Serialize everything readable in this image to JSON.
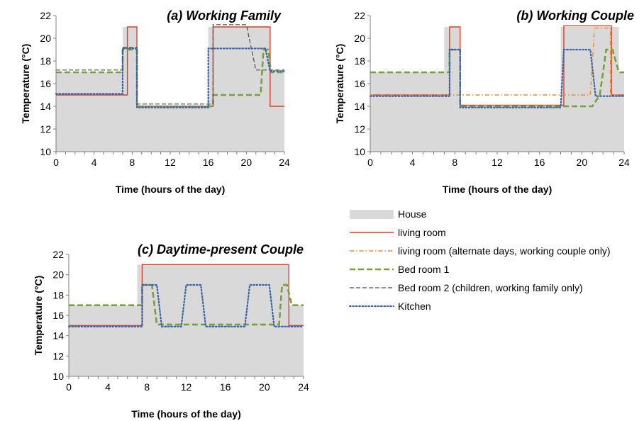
{
  "colors": {
    "house": "#d9d9d9",
    "living_room": "#d9402b",
    "living_room_alt": "#f08c2c",
    "bed_room_1": "#76a03a",
    "bed_room_2": "#4d4d4d",
    "kitchen": "#3a60a8"
  },
  "legend": [
    {
      "key": "house",
      "label": "House",
      "style": "area"
    },
    {
      "key": "living_room",
      "label": "living room",
      "style": "solid"
    },
    {
      "key": "living_room_alt",
      "label": "living room (alternate days, working couple only)",
      "style": "dashdot"
    },
    {
      "key": "bed_room_1",
      "label": "Bed room 1",
      "style": "dashed-thick"
    },
    {
      "key": "bed_room_2",
      "label": "Bed room 2 (children, working family only)",
      "style": "dashed-thin"
    },
    {
      "key": "kitchen",
      "label": "Kitchen",
      "style": "dotted"
    }
  ],
  "chart_data": [
    {
      "type": "line",
      "title": "(a) Working Family",
      "xlabel": "Time (hours of the day)",
      "ylabel": "Temperature (°C)",
      "xlim": [
        0,
        24
      ],
      "ylim": [
        10,
        22
      ],
      "xticks": [
        0,
        4,
        8,
        12,
        16,
        20,
        24
      ],
      "yticks": [
        10,
        12,
        14,
        16,
        18,
        20,
        22
      ],
      "series": [
        {
          "key": "house",
          "name": "House",
          "x": [
            0,
            7,
            7,
            8.5,
            8.5,
            16,
            16,
            22.5,
            22.5,
            24
          ],
          "y": [
            17,
            17,
            21,
            21,
            14,
            14,
            21,
            21,
            17,
            17
          ]
        },
        {
          "key": "living_room",
          "name": "living room",
          "x": [
            0,
            7.5,
            7.5,
            8.5,
            8.5,
            16.5,
            16.5,
            22.5,
            22.5,
            24
          ],
          "y": [
            15,
            15,
            21,
            21,
            14,
            14,
            21,
            21,
            14,
            14
          ]
        },
        {
          "key": "bed_room_1",
          "name": "Bed room 1",
          "x": [
            0,
            7,
            7,
            8.5,
            8.5,
            16.5,
            16.5,
            21.5,
            21.8,
            22.3,
            22.6,
            24
          ],
          "y": [
            17,
            17,
            19,
            19,
            14,
            14,
            15,
            15,
            19,
            19,
            17,
            17
          ]
        },
        {
          "key": "bed_room_2",
          "name": "Bed room 2 (children, working family only)",
          "x": [
            0,
            7,
            7,
            8.5,
            8.5,
            16.5,
            16.5,
            20,
            21,
            24
          ],
          "y": [
            17.2,
            17.2,
            19.2,
            19.2,
            14.2,
            14.2,
            21.2,
            21.2,
            17.2,
            17.2
          ]
        },
        {
          "key": "kitchen",
          "name": "Kitchen",
          "x": [
            0,
            7,
            7,
            8.5,
            8.5,
            16,
            16,
            22,
            22.5,
            24
          ],
          "y": [
            15.1,
            15.1,
            19.1,
            19.1,
            13.9,
            13.9,
            19.1,
            19.1,
            17.1,
            17.1
          ]
        }
      ]
    },
    {
      "type": "line",
      "title": "(b) Working Couple",
      "xlabel": "Time (hours of the day)",
      "ylabel": "Temperature (°C)",
      "xlim": [
        0,
        24
      ],
      "ylim": [
        10,
        22
      ],
      "xticks": [
        0,
        4,
        8,
        12,
        16,
        20,
        24
      ],
      "yticks": [
        10,
        12,
        14,
        16,
        18,
        20,
        22
      ],
      "series": [
        {
          "key": "house",
          "name": "House",
          "x": [
            0,
            7,
            7,
            8.5,
            8.5,
            18,
            18,
            23.5,
            23.5,
            24
          ],
          "y": [
            17,
            17,
            21,
            21,
            14,
            14,
            21,
            21,
            17,
            17
          ]
        },
        {
          "key": "living_room",
          "name": "living room",
          "x": [
            0,
            7.5,
            7.5,
            8.5,
            8.5,
            18.3,
            18.3,
            22.8,
            22.8,
            24
          ],
          "y": [
            15,
            15,
            21,
            21,
            14.1,
            14.1,
            21.1,
            21.1,
            15,
            15
          ]
        },
        {
          "key": "living_room_alt",
          "name": "living room (alternate days, working couple only)",
          "x": [
            0,
            20.8,
            21.2,
            22.7,
            22.7,
            24
          ],
          "y": [
            15,
            15,
            20.9,
            20.9,
            15,
            15
          ]
        },
        {
          "key": "bed_room_1",
          "name": "Bed room 1",
          "x": [
            0,
            7.5,
            7.5,
            8.5,
            8.5,
            21,
            21.7,
            22.3,
            22.9,
            23.5,
            24
          ],
          "y": [
            17,
            17,
            19,
            19,
            14,
            14,
            15,
            19,
            19,
            17,
            17
          ]
        },
        {
          "key": "kitchen",
          "name": "Kitchen",
          "x": [
            0,
            7.5,
            7.5,
            8.5,
            8.5,
            18,
            18.3,
            20.8,
            21.3,
            24
          ],
          "y": [
            14.9,
            14.9,
            19,
            19,
            13.9,
            13.9,
            19,
            19,
            14.9,
            14.9
          ]
        }
      ]
    },
    {
      "type": "line",
      "title": "(c) Daytime-present Couple",
      "xlabel": "Time (hours of the day)",
      "ylabel": "Temperature (°C)",
      "xlim": [
        0,
        24
      ],
      "ylim": [
        10,
        22
      ],
      "xticks": [
        0,
        4,
        8,
        12,
        16,
        20,
        24
      ],
      "yticks": [
        10,
        12,
        14,
        16,
        18,
        20,
        22
      ],
      "series": [
        {
          "key": "house",
          "name": "House",
          "x": [
            0,
            7,
            7,
            22.5,
            22.5,
            24
          ],
          "y": [
            17,
            17,
            21,
            21,
            17,
            17
          ]
        },
        {
          "key": "living_room",
          "name": "living room",
          "x": [
            0,
            7.5,
            7.5,
            22.5,
            22.5,
            24
          ],
          "y": [
            15,
            15,
            21,
            21,
            15,
            15
          ]
        },
        {
          "key": "bed_room_1",
          "name": "Bed room 1",
          "x": [
            0,
            7.5,
            7.5,
            8.5,
            9.0,
            21.5,
            21.8,
            22.3,
            22.8,
            24
          ],
          "y": [
            17,
            17,
            19,
            19,
            15.1,
            15.1,
            19,
            19,
            17,
            17
          ]
        },
        {
          "key": "kitchen",
          "name": "Kitchen",
          "x": [
            0,
            7.5,
            7.5,
            9.0,
            9.5,
            11.5,
            12,
            13.5,
            14,
            18,
            18.5,
            20.5,
            21,
            24
          ],
          "y": [
            14.9,
            14.9,
            19,
            19,
            14.9,
            14.9,
            19,
            19,
            14.9,
            14.9,
            19,
            19,
            14.9,
            14.9
          ]
        }
      ]
    }
  ]
}
